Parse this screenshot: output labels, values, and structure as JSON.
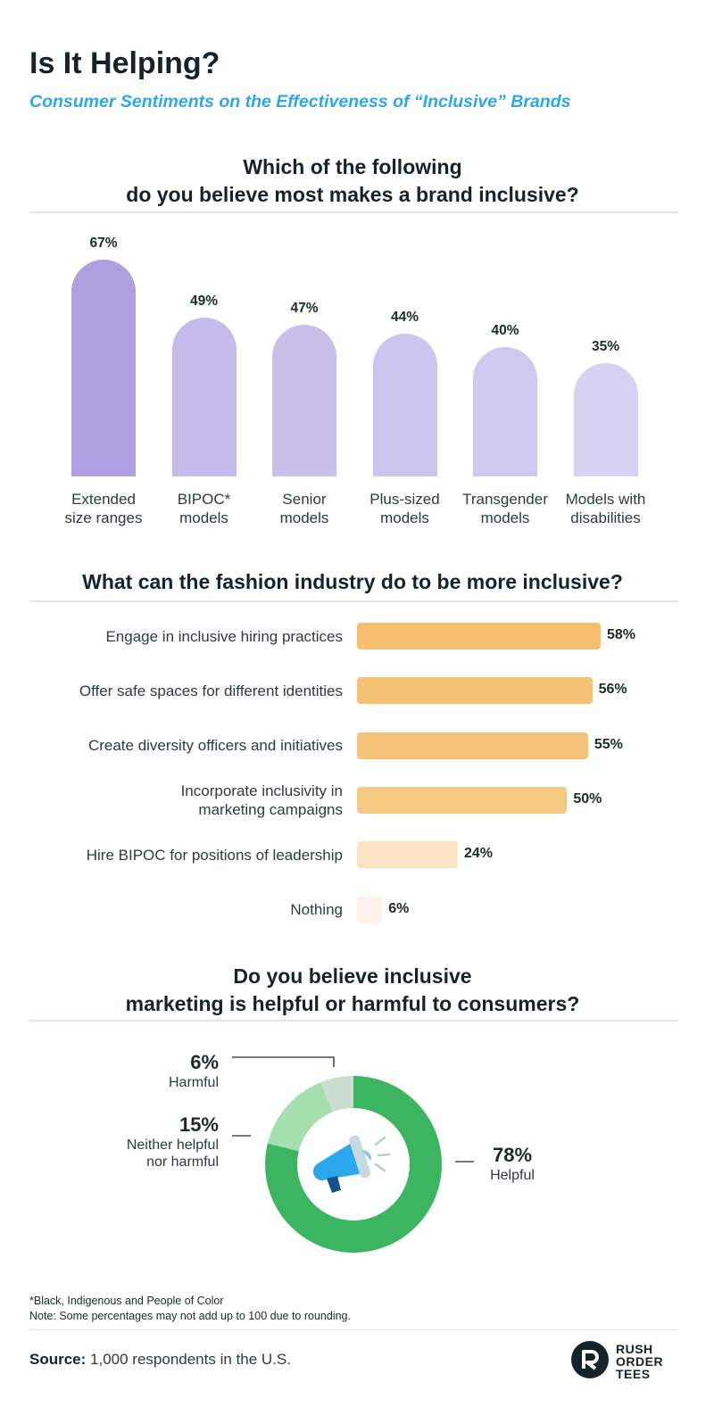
{
  "header": {
    "title": "Is It Helping?",
    "subtitle": "Consumer Sentiments on the Effectiveness of “Inclusive” Brands"
  },
  "section1": {
    "question_line1": "Which of the following",
    "question_line2": "do you believe most makes a brand inclusive?"
  },
  "section2": {
    "question": "What can the fashion industry do to be more inclusive?"
  },
  "section3": {
    "question_line1": "Do you believe inclusive",
    "question_line2": "marketing is helpful or harmful to consumers?"
  },
  "chart_data": [
    {
      "type": "bar",
      "orientation": "vertical",
      "categories": [
        "Extended size ranges",
        "BIPOC* models",
        "Senior models",
        "Plus-sized models",
        "Transgender models",
        "Models with disabilities"
      ],
      "category_lines": [
        [
          "Extended",
          "size ranges"
        ],
        [
          "BIPOC*",
          "models"
        ],
        [
          "Senior",
          "models"
        ],
        [
          "Plus-sized",
          "models"
        ],
        [
          "Transgender",
          "models"
        ],
        [
          "Models with",
          "disabilities"
        ]
      ],
      "values": [
        67,
        49,
        47,
        44,
        40,
        35
      ],
      "value_labels": [
        "67%",
        "49%",
        "47%",
        "44%",
        "40%",
        "35%"
      ],
      "colors": [
        "#ad9fe0",
        "#c4bbea",
        "#c8c0eb",
        "#ccc5ed",
        "#d0c9ef",
        "#d7d1f2"
      ],
      "ylim": [
        0,
        67
      ]
    },
    {
      "type": "bar",
      "orientation": "horizontal",
      "categories": [
        "Engage in inclusive hiring practices",
        "Offer safe spaces for different identities",
        "Create diversity officers and initiatives",
        "Incorporate inclusivity in marketing campaigns",
        "Hire BIPOC for positions of leadership",
        "Nothing"
      ],
      "category_lines": [
        [
          "Engage in inclusive hiring practices"
        ],
        [
          "Offer safe spaces for different identities"
        ],
        [
          "Create diversity officers and initiatives"
        ],
        [
          "Incorporate inclusivity in",
          "marketing campaigns"
        ],
        [
          "Hire BIPOC for positions of leadership"
        ],
        [
          "Nothing"
        ]
      ],
      "values": [
        58,
        56,
        55,
        50,
        24,
        6
      ],
      "value_labels": [
        "58%",
        "56%",
        "55%",
        "50%",
        "24%",
        "6%"
      ],
      "colors": [
        "#f5bf6f",
        "#f5c274",
        "#f5c479",
        "#f6c982",
        "#fce3c6",
        "#fdf1ea"
      ],
      "xlim": [
        0,
        58
      ]
    },
    {
      "type": "pie",
      "variant": "donut",
      "slices": [
        {
          "label": "Helpful",
          "value": 78,
          "value_label": "78%",
          "color": "#3bb560"
        },
        {
          "label": "Neither helpful nor harmful",
          "label_lines": [
            "Neither helpful",
            "nor harmful"
          ],
          "value": 15,
          "value_label": "15%",
          "color": "#a4dfae"
        },
        {
          "label": "Harmful",
          "value": 6,
          "value_label": "6%",
          "color": "#c9ddd0"
        }
      ],
      "center_icon": "megaphone-icon"
    }
  ],
  "footnotes": {
    "line1": "*Black, Indigenous and People of Color",
    "line2": "Note: Some percentages may not add up to 100 due to rounding."
  },
  "source": {
    "label": "Source:",
    "text": "1,000 respondents in the U.S."
  },
  "logo": {
    "line1": "RUSH",
    "line2": "ORDER",
    "line3": "TEES",
    "icon": "rush-order-tees-logo-icon"
  },
  "colors": {
    "title": "#16232a",
    "subtitle_accent": "#2ba7ec",
    "megaphone_blue": "#2ba7ec"
  }
}
